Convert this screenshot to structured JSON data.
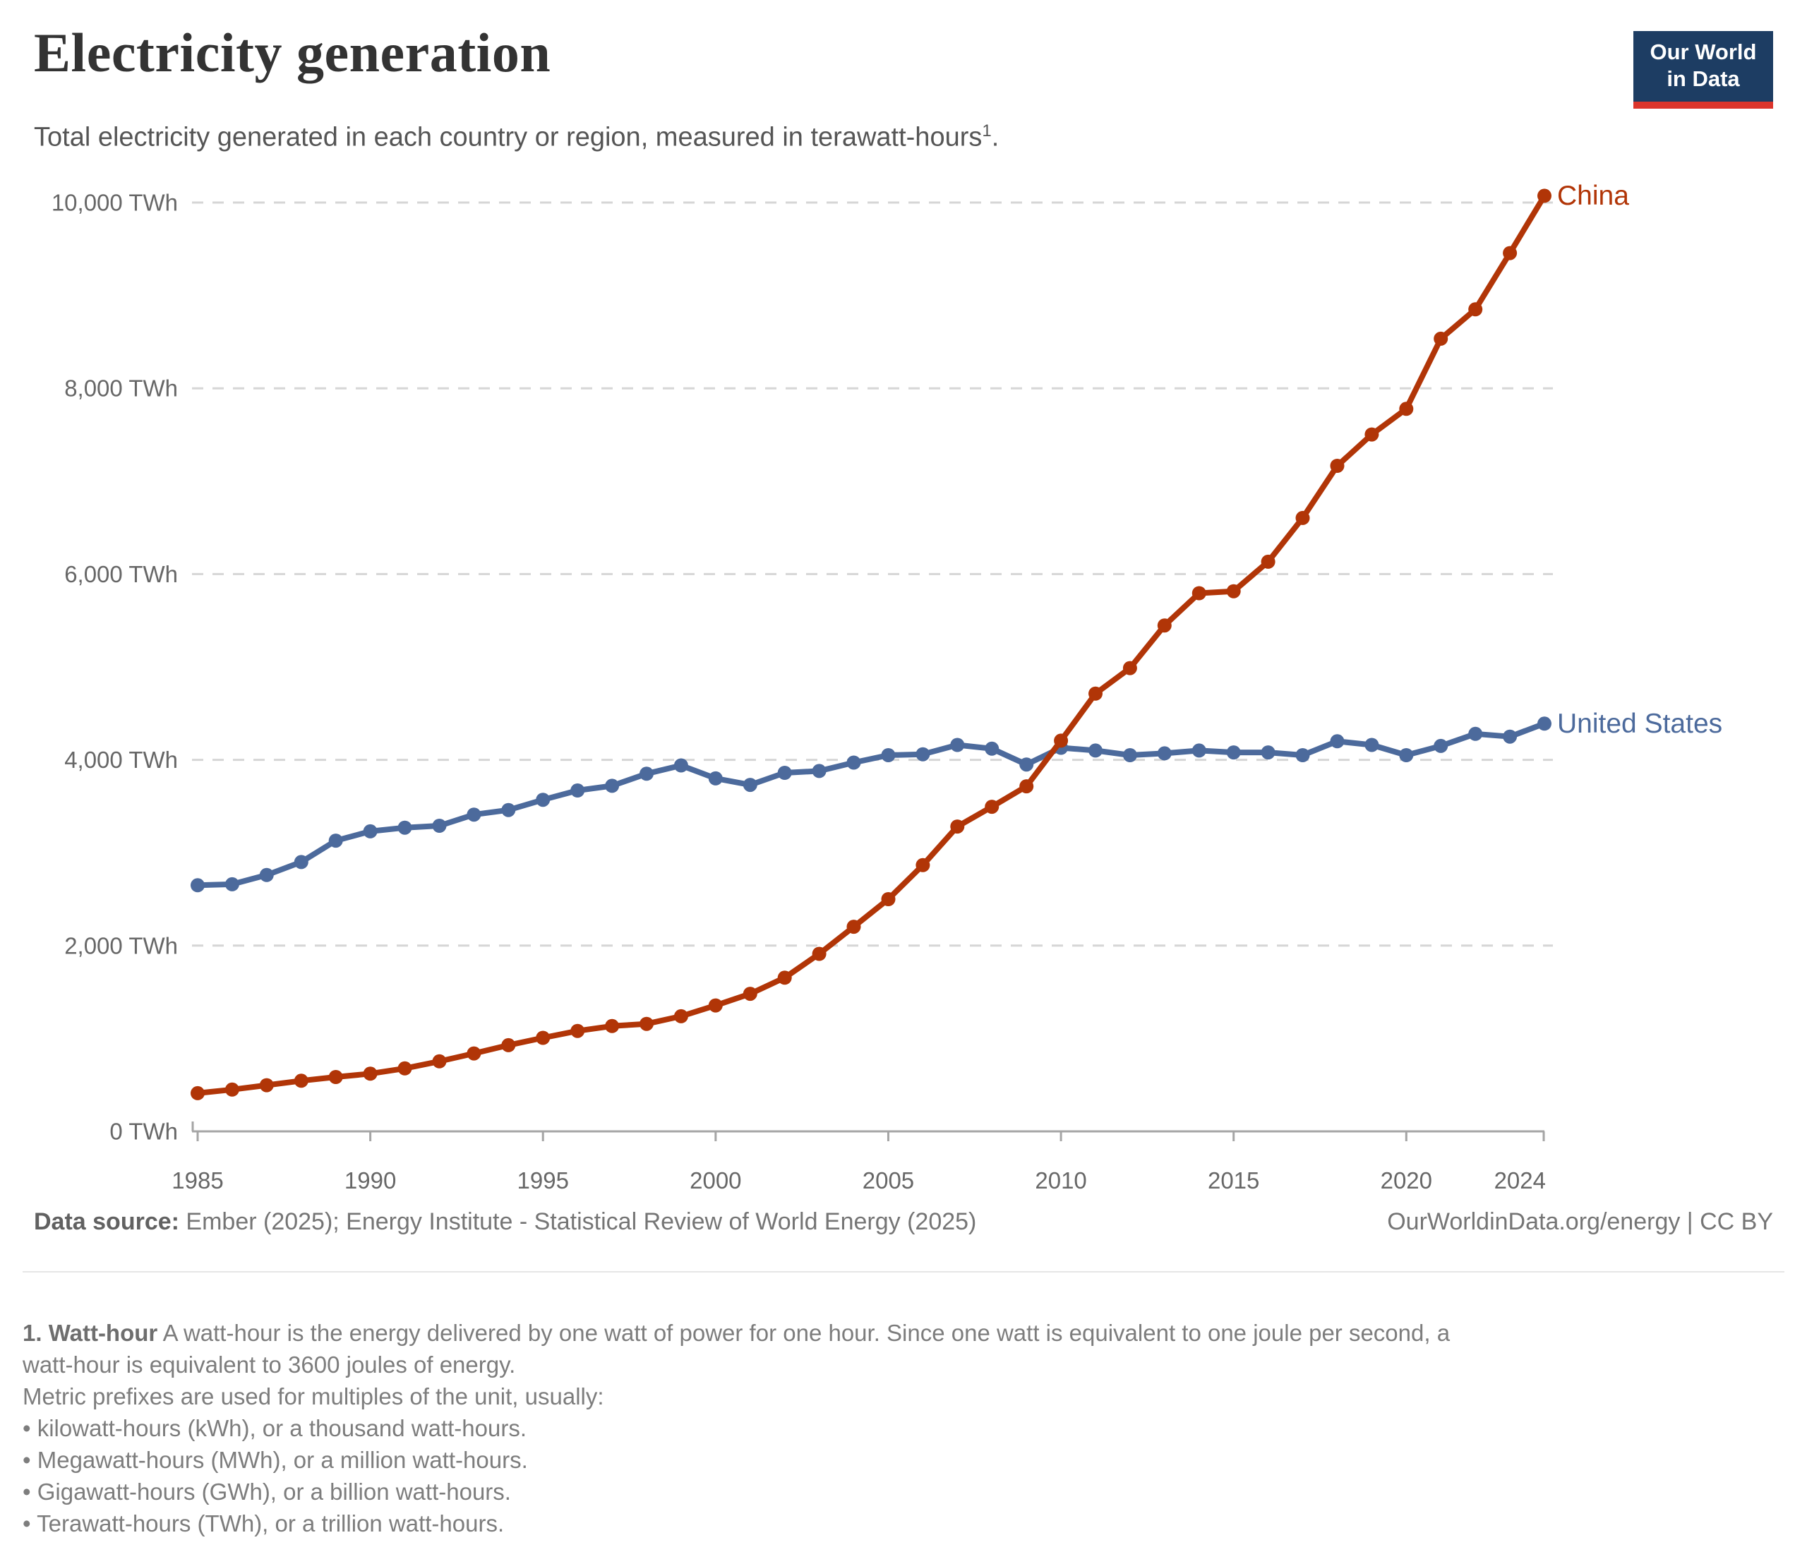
{
  "header": {
    "title": "Electricity generation",
    "subtitle_main": "Total electricity generated in each country or region, measured in terawatt-hours",
    "subtitle_sup": "1",
    "subtitle_period": "."
  },
  "logo": {
    "line1": "Our World",
    "line2": "in Data",
    "bg_color": "#1d3d63",
    "bar_color": "#dc352c"
  },
  "chart_data": {
    "type": "line",
    "title": "Electricity generation",
    "xlabel": "",
    "ylabel": "",
    "unit": "TWh",
    "grid": "horizontal-dashed",
    "legend": "line-end-labels",
    "ylim": [
      0,
      10000
    ],
    "x": [
      1985,
      1986,
      1987,
      1988,
      1989,
      1990,
      1991,
      1992,
      1993,
      1994,
      1995,
      1996,
      1997,
      1998,
      1999,
      2000,
      2001,
      2002,
      2003,
      2004,
      2005,
      2006,
      2007,
      2008,
      2009,
      2010,
      2011,
      2012,
      2013,
      2014,
      2015,
      2016,
      2017,
      2018,
      2019,
      2020,
      2021,
      2022,
      2023,
      2024
    ],
    "xticks": [
      1985,
      1990,
      1995,
      2000,
      2005,
      2010,
      2015,
      2020,
      2024
    ],
    "yticks": [
      {
        "value": 0,
        "label": "0 TWh"
      },
      {
        "value": 2000,
        "label": "2,000 TWh"
      },
      {
        "value": 4000,
        "label": "4,000 TWh"
      },
      {
        "value": 6000,
        "label": "6,000 TWh"
      },
      {
        "value": 8000,
        "label": "8,000 TWh"
      },
      {
        "value": 10000,
        "label": "10,000 TWh"
      }
    ],
    "series": [
      {
        "name": "United States",
        "color": "#4C6A9C",
        "values": [
          2650,
          2660,
          2760,
          2900,
          3130,
          3230,
          3270,
          3290,
          3410,
          3460,
          3570,
          3670,
          3720,
          3850,
          3940,
          3800,
          3730,
          3860,
          3880,
          3970,
          4050,
          4060,
          4160,
          4120,
          3950,
          4130,
          4100,
          4050,
          4070,
          4100,
          4080,
          4080,
          4050,
          4200,
          4160,
          4050,
          4150,
          4280,
          4250,
          4390
        ]
      },
      {
        "name": "China",
        "color": "#B13507",
        "values": [
          411,
          450,
          497,
          545,
          585,
          621,
          678,
          754,
          839,
          928,
          1007,
          1081,
          1134,
          1157,
          1239,
          1356,
          1481,
          1654,
          1911,
          2203,
          2500,
          2866,
          3282,
          3495,
          3715,
          4207,
          4713,
          4988,
          5447,
          5794,
          5815,
          6133,
          6604,
          7166,
          7503,
          7779,
          8534,
          8850,
          9456,
          10073
        ]
      }
    ],
    "colors": {
      "grid": "#d6d6d6",
      "axis": "#a5a5a5",
      "tick_label": "#676767"
    }
  },
  "footer": {
    "source_label": "Data source:",
    "source_text": " Ember (2025); Energy Institute - Statistical Review of World Energy (2025)",
    "credit": "OurWorldinData.org/energy | CC BY"
  },
  "footnote": {
    "bold_prefix": "1. Watt-hour",
    "line1_rest": " A watt-hour is the energy delivered by one watt of power for one hour. Since one watt is equivalent to one joule per second, a",
    "line2": "watt-hour is equivalent to 3600 joules of energy.",
    "line3": "Metric prefixes are used for multiples of the unit, usually:",
    "bullets": [
      "• kilowatt-hours (kWh), or a thousand watt-hours.",
      "• Megawatt-hours (MWh), or a million watt-hours.",
      "• Gigawatt-hours (GWh), or a billion watt-hours.",
      "• Terawatt-hours (TWh), or a trillion watt-hours."
    ]
  }
}
